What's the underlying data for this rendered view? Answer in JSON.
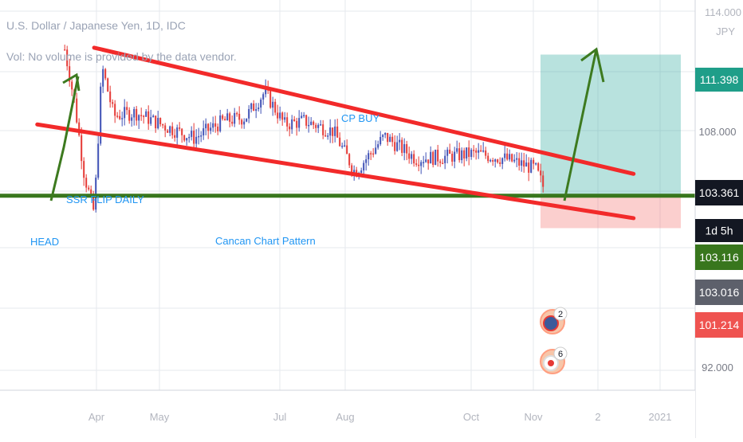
{
  "header": {
    "symbol_title": "U.S. Dollar / Japanese Yen, 1D, IDC",
    "volume_note": "Vol: No volume is provided by the data vendor."
  },
  "price_axis": {
    "currency": "JPY",
    "top_label": "114.000",
    "ticks": [
      "108.000",
      "92.000"
    ],
    "badges": [
      {
        "text": "111.398",
        "color": "#1f9e89"
      },
      {
        "text": "103.361",
        "color": "#131722"
      },
      {
        "text": "1d 5h",
        "color": "#131722"
      },
      {
        "text": "103.116",
        "color": "#38761d"
      },
      {
        "text": "103.016",
        "color": "#5d606b"
      },
      {
        "text": "101.214",
        "color": "#ef5350"
      }
    ]
  },
  "time_axis": {
    "labels": [
      "Apr",
      "May",
      "Jul",
      "Aug",
      "Oct",
      "Nov",
      "2",
      "2021"
    ]
  },
  "annotations": {
    "cp_buy": "CP BUY",
    "ssr_flip": "SSR FLIP DAILY",
    "head": "HEAD",
    "pattern_name": "Cancan Chart Pattern"
  },
  "event_markers": [
    {
      "flag": "us-flag-icon",
      "count": "2"
    },
    {
      "flag": "jp-flag-icon",
      "count": "6"
    }
  ],
  "chart_data": {
    "type": "line",
    "title": "U.S. Dollar / Japanese Yen, 1D, IDC",
    "x": [
      "2020-03-05",
      "2020-03-10",
      "2020-03-15",
      "2020-03-20",
      "2020-03-24",
      "2020-03-30",
      "2020-04-10",
      "2020-04-25",
      "2020-05-10",
      "2020-05-25",
      "2020-06-05",
      "2020-06-15",
      "2020-06-25",
      "2020-07-05",
      "2020-07-20",
      "2020-07-31",
      "2020-08-15",
      "2020-08-31",
      "2020-09-15",
      "2020-09-30",
      "2020-10-15",
      "2020-10-31",
      "2020-11-05"
    ],
    "series": [
      {
        "values": [
          111.7,
          108.6,
          104.3,
          102.1,
          110.7,
          107.8,
          108.0,
          107.2,
          106.5,
          107.5,
          107.7,
          109.2,
          107.3,
          107.5,
          106.9,
          104.5,
          106.6,
          105.3,
          105.4,
          105.6,
          105.3,
          104.7,
          103.36
        ]
      }
    ],
    "ylim": [
      88.9,
      114.6
    ],
    "y_ticks_shown": [
      108.0,
      92.0
    ],
    "lines": {
      "horizontal_support": 103.116,
      "upper_trendline": [
        {
          "x": "2020-03-20",
          "y": 111.8
        },
        {
          "x": "2020-12-20",
          "y": 104.4
        }
      ],
      "lower_trendline": [
        {
          "x": "2020-02-20",
          "y": 107.3
        },
        {
          "x": "2020-12-20",
          "y": 101.8
        }
      ]
    },
    "position": {
      "entry": 103.116,
      "target": 111.398,
      "stop": 101.214
    },
    "grid": true,
    "legend": "top-left"
  }
}
